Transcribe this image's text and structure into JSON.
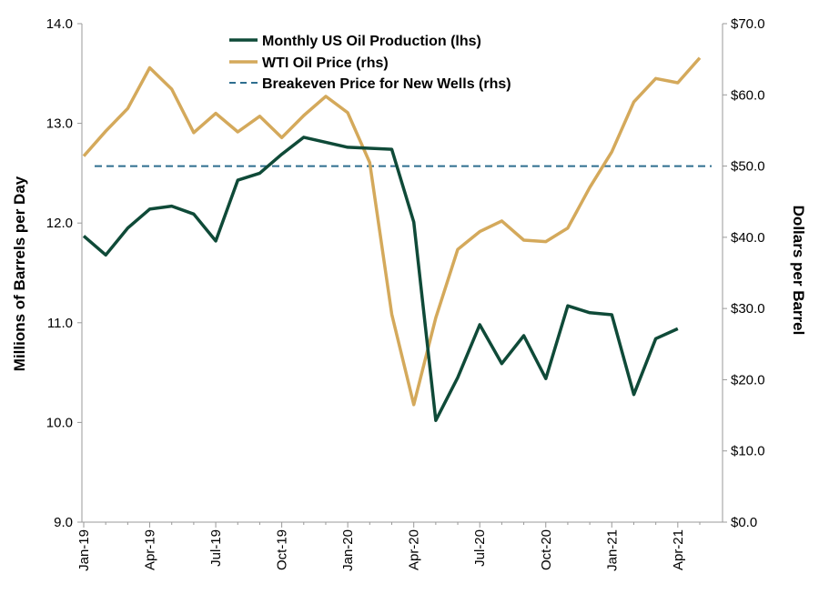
{
  "chart_data": {
    "type": "line",
    "x": [
      "Jan-19",
      "Feb-19",
      "Mar-19",
      "Apr-19",
      "May-19",
      "Jun-19",
      "Jul-19",
      "Aug-19",
      "Sep-19",
      "Oct-19",
      "Nov-19",
      "Dec-19",
      "Jan-20",
      "Feb-20",
      "Mar-20",
      "Apr-20",
      "May-20",
      "Jun-20",
      "Jul-20",
      "Aug-20",
      "Sep-20",
      "Oct-20",
      "Nov-20",
      "Dec-20",
      "Jan-21",
      "Feb-21",
      "Mar-21",
      "Apr-21",
      "May-21"
    ],
    "x_tick_labels": [
      "Jan-19",
      "Apr-19",
      "Jul-19",
      "Oct-19",
      "Jan-20",
      "Apr-20",
      "Jul-20",
      "Oct-20",
      "Jan-21",
      "Apr-21"
    ],
    "y_left": {
      "label": "Millions of Barrels per Day",
      "lim": [
        9.0,
        14.0
      ],
      "ticks": [
        "9.0",
        "10.0",
        "11.0",
        "12.0",
        "13.0",
        "14.0"
      ]
    },
    "y_right": {
      "label": "Dollars per Barrel",
      "lim": [
        0,
        70
      ],
      "ticks": [
        "$0.0",
        "$10.0",
        "$20.0",
        "$30.0",
        "$40.0",
        "$50.0",
        "$60.0",
        "$70.0"
      ]
    },
    "grid": false,
    "legend_position": "top-center",
    "series": [
      {
        "name": "Monthly US Oil Production (lhs)",
        "axis": "left",
        "color": "#0f4a38",
        "style": "solid",
        "values": [
          11.87,
          11.68,
          11.95,
          12.14,
          12.17,
          12.09,
          11.82,
          12.43,
          12.5,
          12.69,
          12.86,
          12.81,
          12.76,
          12.75,
          12.74,
          12.01,
          10.02,
          10.45,
          10.98,
          10.59,
          10.87,
          10.44,
          11.17,
          11.1,
          11.08,
          10.28,
          10.84,
          10.94,
          null
        ]
      },
      {
        "name": "WTI Oil Price (rhs)",
        "axis": "right",
        "color": "#d4a95b",
        "style": "solid",
        "values": [
          51.4,
          54.9,
          58.1,
          63.8,
          60.8,
          54.7,
          57.4,
          54.8,
          57.0,
          54.0,
          57.1,
          59.8,
          57.5,
          50.5,
          29.2,
          16.5,
          28.7,
          38.3,
          40.8,
          42.3,
          39.6,
          39.4,
          41.3,
          47.0,
          52.0,
          59.0,
          62.3,
          61.7,
          65.2
        ]
      },
      {
        "name": "Breakeven Price for New Wells (rhs)",
        "axis": "right",
        "color": "#2e6e8f",
        "style": "dashed",
        "values": [
          50,
          50,
          50,
          50,
          50,
          50,
          50,
          50,
          50,
          50,
          50,
          50,
          50,
          50,
          50,
          50,
          50,
          50,
          50,
          50,
          50,
          50,
          50,
          50,
          50,
          50,
          50,
          50,
          50
        ]
      }
    ]
  }
}
